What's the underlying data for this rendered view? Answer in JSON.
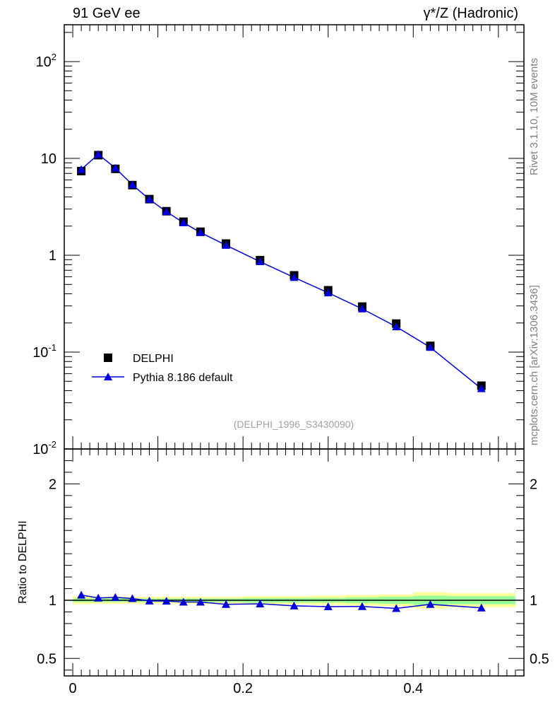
{
  "header": {
    "left_label": "91 GeV ee",
    "right_label": "γ*/Z (Hadronic)"
  },
  "side_labels": {
    "rivet": "Rivet 3.1.10,  10M events",
    "mcplots": "mcplots.cern.ch [arXiv:1306.3436]"
  },
  "colors": {
    "data": "#000000",
    "mc": "#0000e0",
    "band_outer": "#ffff99",
    "band_inner": "#99ff99"
  },
  "chart_data": [
    {
      "type": "scatter",
      "panel": "main",
      "yscale": "log",
      "xlim": [
        -0.01,
        0.53
      ],
      "ylim": [
        0.01,
        240
      ],
      "analysis_label": "(DELPHI_1996_S3430090)",
      "legend_position": "lower-left",
      "y_tick_labels": [
        "10^-2",
        "10^-1",
        "1",
        "10",
        "10^2"
      ],
      "x": [
        0.01,
        0.03,
        0.05,
        0.07,
        0.09,
        0.11,
        0.13,
        0.15,
        0.18,
        0.22,
        0.26,
        0.3,
        0.34,
        0.38,
        0.42,
        0.48
      ],
      "series": [
        {
          "name": "DELPHI",
          "marker": "square",
          "values": [
            7.4,
            10.8,
            7.8,
            5.3,
            3.8,
            2.85,
            2.22,
            1.75,
            1.32,
            0.89,
            0.62,
            0.435,
            0.295,
            0.197,
            0.116,
            0.045
          ]
        },
        {
          "name": "Pythia 8.186 default",
          "marker": "triangle",
          "line": true,
          "values": [
            7.7,
            11.0,
            7.95,
            5.35,
            3.78,
            2.82,
            2.17,
            1.72,
            1.27,
            0.86,
            0.59,
            0.41,
            0.28,
            0.183,
            0.112,
            0.042
          ]
        }
      ]
    },
    {
      "type": "line",
      "panel": "ratio",
      "ylabel": "Ratio to DELPHI",
      "xlim": [
        -0.01,
        0.53
      ],
      "ylim": [
        0.35,
        2.3
      ],
      "x_tick_labels": [
        "0",
        "0.2",
        "0.4"
      ],
      "y_tick_labels": [
        "0.5",
        "1",
        "2"
      ],
      "x": [
        0.01,
        0.03,
        0.05,
        0.07,
        0.09,
        0.11,
        0.13,
        0.15,
        0.18,
        0.22,
        0.26,
        0.3,
        0.34,
        0.38,
        0.42,
        0.48
      ],
      "bin_edges": [
        0.0,
        0.02,
        0.04,
        0.06,
        0.08,
        0.1,
        0.12,
        0.14,
        0.16,
        0.2,
        0.24,
        0.28,
        0.32,
        0.36,
        0.4,
        0.44,
        0.52
      ],
      "series": [
        {
          "name": "Pythia 8.186 default",
          "values": [
            1.045,
            1.02,
            1.025,
            1.015,
            0.995,
            0.993,
            0.985,
            0.985,
            0.965,
            0.97,
            0.952,
            0.945,
            0.947,
            0.93,
            0.965,
            0.935
          ]
        }
      ],
      "band_outer": [
        0.035,
        0.03,
        0.03,
        0.03,
        0.03,
        0.03,
        0.03,
        0.03,
        0.03,
        0.035,
        0.035,
        0.04,
        0.045,
        0.05,
        0.07,
        0.06
      ],
      "band_inner": [
        0.015,
        0.015,
        0.015,
        0.015,
        0.015,
        0.015,
        0.015,
        0.015,
        0.015,
        0.02,
        0.02,
        0.02,
        0.025,
        0.03,
        0.04,
        0.035
      ]
    }
  ]
}
